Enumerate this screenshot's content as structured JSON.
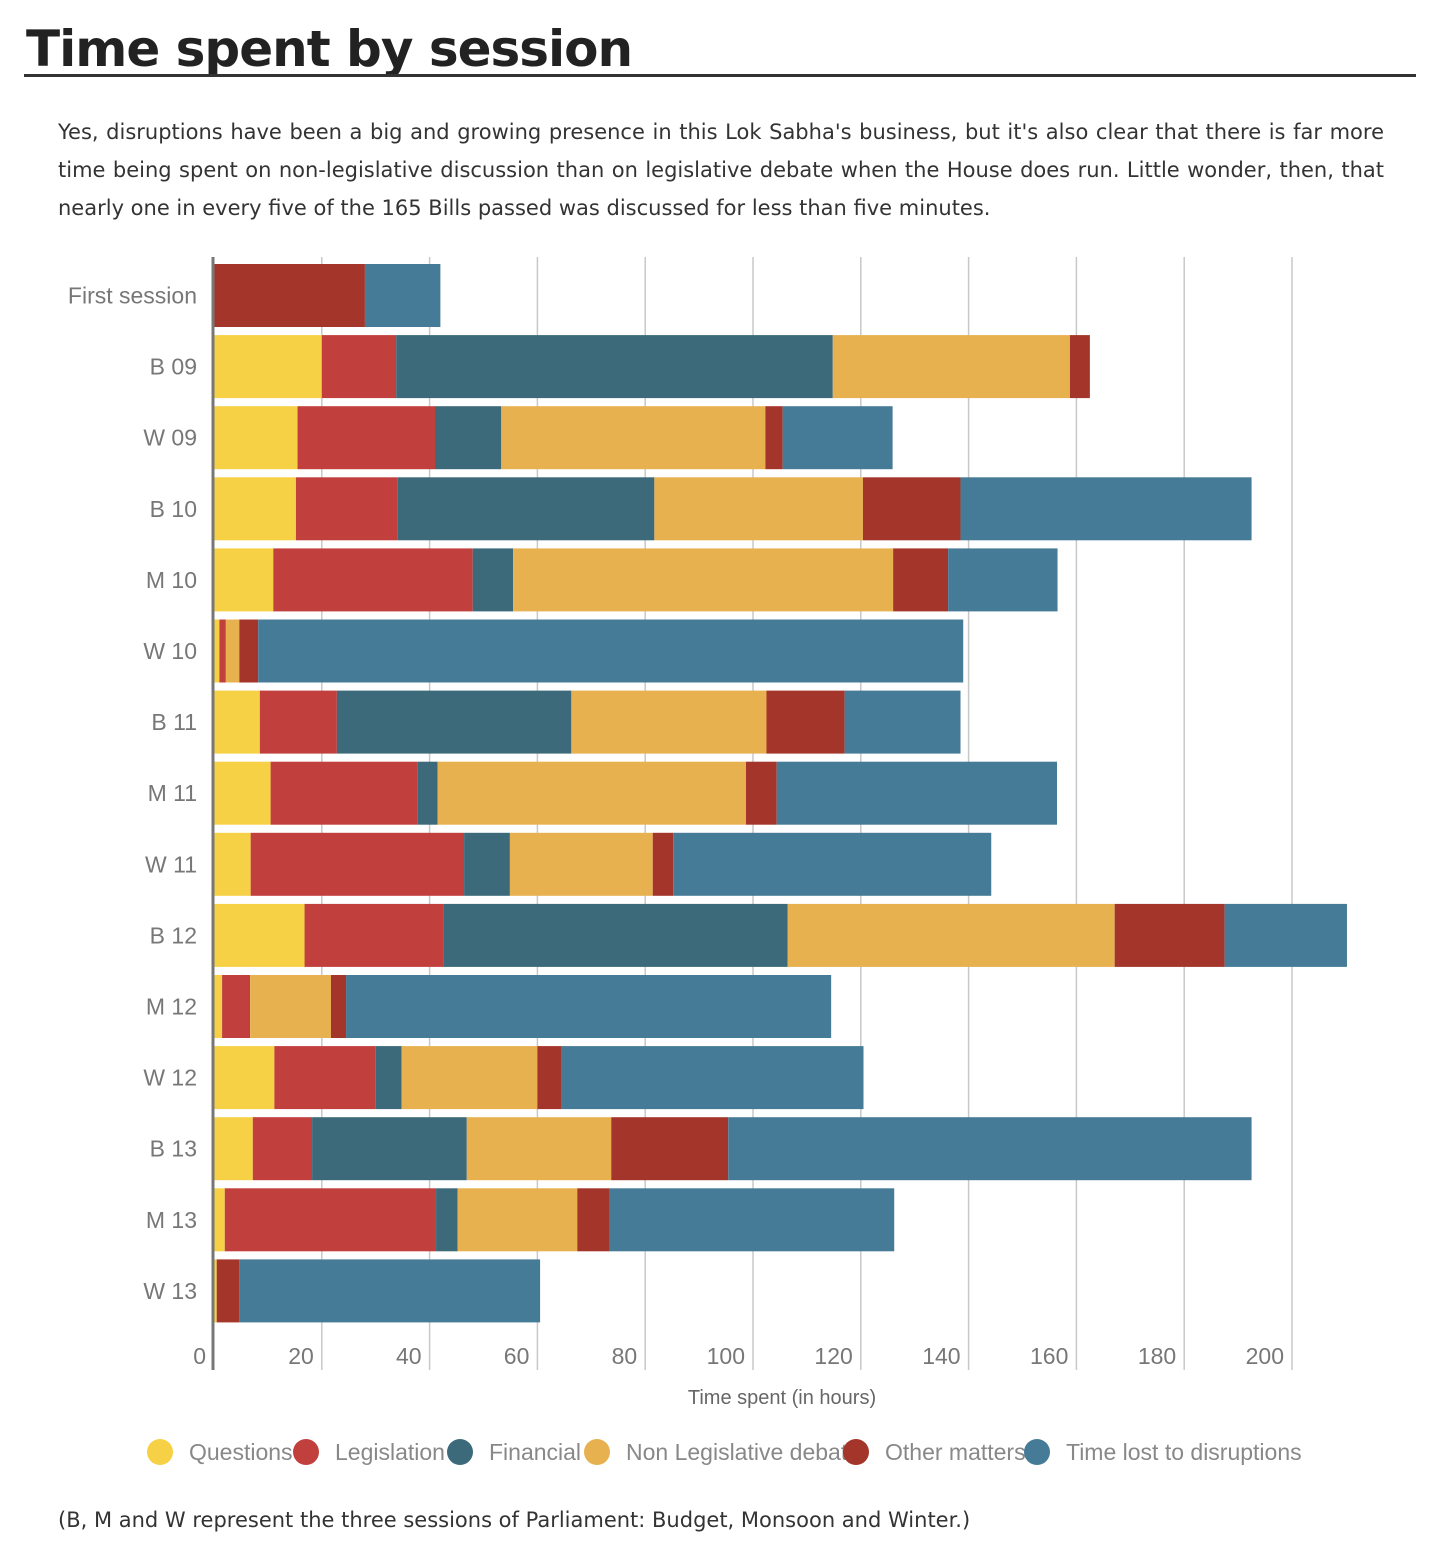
{
  "title": "Time spent by session",
  "subtitle": "Yes, disruptions have been a big and growing presence in this Lok Sabha's business, but it's also clear that there is far more time being spent on non-legislative discussion than on legislative debate when the House does run. Little wonder, then, that nearly one in every five of the 165 Bills passed was discussed for less than five minutes.",
  "footnote": "(B, M and W represent the three sessions of Parliament: Budget, Monsoon and Winter.)",
  "chart_data": {
    "type": "bar",
    "orientation": "horizontal",
    "stacked": true,
    "xlabel": "Time spent (in hours)",
    "ylabel": "",
    "xlim": [
      0,
      210
    ],
    "xticks": [
      0,
      20,
      40,
      60,
      80,
      100,
      120,
      140,
      160,
      180,
      200
    ],
    "grid": "vertical",
    "legend_position": "bottom",
    "categories": [
      "First session",
      "B 09",
      "W 09",
      "B 10",
      "M 10",
      "W 10",
      "B 11",
      "M 11",
      "W 11",
      "B 12",
      "M 12",
      "W 12",
      "B 13",
      "M 13",
      "W 13"
    ],
    "series": [
      {
        "name": "Questions",
        "color": "#f7d145",
        "values": [
          0,
          20,
          15.5,
          15.2,
          11,
          1,
          8.5,
          10.5,
          6.8,
          16.8,
          1.5,
          11.2,
          7.2,
          2,
          0.5
        ]
      },
      {
        "name": "Legislation",
        "color": "#c1403d",
        "values": [
          0,
          13.8,
          25.5,
          18.8,
          37,
          1.2,
          14.3,
          27.2,
          39.6,
          25.8,
          5.2,
          18.8,
          11,
          39.2,
          0
        ]
      },
      {
        "name": "Financial",
        "color": "#3c6a7a",
        "values": [
          0,
          81,
          12.3,
          47.7,
          7.5,
          0,
          43.5,
          3.8,
          8.5,
          63.8,
          0,
          4.8,
          28.7,
          4,
          0
        ]
      },
      {
        "name": "Non Legislative debate",
        "color": "#e8b150",
        "values": [
          0,
          44,
          49,
          38.7,
          70.5,
          2.5,
          36.2,
          57.2,
          26.5,
          60.7,
          15,
          25.2,
          26.8,
          22.2,
          0
        ]
      },
      {
        "name": "Other matters",
        "color": "#a3352a",
        "values": [
          28,
          3.7,
          3.2,
          18.1,
          10.2,
          3.5,
          14.5,
          5.7,
          3.8,
          20.4,
          2.8,
          4.5,
          21.7,
          6,
          4.2
        ]
      },
      {
        "name": "Time lost to disruptions",
        "color": "#467b97",
        "values": [
          14,
          0,
          20.4,
          54,
          20.3,
          130.8,
          21.5,
          52,
          59,
          22.7,
          90,
          56,
          97.1,
          52.8,
          55.8
        ]
      }
    ]
  }
}
